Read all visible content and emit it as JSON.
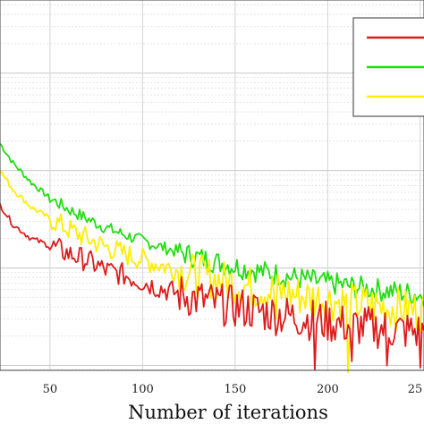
{
  "chart_data": {
    "type": "line",
    "title": "",
    "xlabel": "Number of iterations",
    "ylabel": "",
    "x_ticks": [
      "50",
      "100",
      "150",
      "200",
      "25"
    ],
    "xlim": [
      23,
      252
    ],
    "ylim_log10": [
      -3.05,
      0.75
    ],
    "y_scale": "log",
    "grid": true,
    "legend": {
      "placement": "top-right",
      "labels_visible": false
    },
    "series": [
      {
        "color": "#dd1c1c",
        "x": [
          23,
          30,
          40,
          50,
          60,
          70,
          80,
          90,
          100,
          110,
          120,
          130,
          140,
          150,
          160,
          170,
          180,
          190,
          200,
          210,
          220,
          230,
          240,
          250
        ],
        "y": [
          0.045,
          0.028,
          0.02,
          0.017,
          0.014,
          0.012,
          0.0095,
          0.0085,
          0.0072,
          0.0062,
          0.0054,
          0.0048,
          0.0043,
          0.004,
          0.0037,
          0.0034,
          0.0032,
          0.003,
          0.0028,
          0.0026,
          0.0025,
          0.0024,
          0.0023,
          0.0022
        ]
      },
      {
        "color": "#22dd11",
        "x": [
          23,
          30,
          40,
          50,
          60,
          70,
          80,
          90,
          100,
          110,
          120,
          130,
          140,
          150,
          160,
          170,
          180,
          190,
          200,
          210,
          220,
          230,
          240,
          250
        ],
        "y": [
          0.19,
          0.12,
          0.075,
          0.052,
          0.04,
          0.032,
          0.026,
          0.022,
          0.019,
          0.0165,
          0.0145,
          0.0128,
          0.0115,
          0.0104,
          0.0095,
          0.0088,
          0.0081,
          0.0075,
          0.007,
          0.0066,
          0.0062,
          0.0059,
          0.0056,
          0.0053
        ]
      },
      {
        "color": "#ffee00",
        "x": [
          23,
          30,
          40,
          50,
          60,
          70,
          80,
          90,
          100,
          110,
          120,
          130,
          140,
          150,
          160,
          170,
          180,
          190,
          200,
          210,
          220,
          230,
          240,
          250
        ],
        "y": [
          0.1,
          0.064,
          0.042,
          0.032,
          0.025,
          0.02,
          0.0165,
          0.014,
          0.0122,
          0.0107,
          0.0094,
          0.0084,
          0.0076,
          0.0069,
          0.0063,
          0.0058,
          0.0054,
          0.005,
          0.0047,
          0.0044,
          0.0042,
          0.004,
          0.0038,
          0.0036
        ]
      }
    ],
    "deep_dips": [
      {
        "series": 0,
        "x": 193,
        "y": 0.0009
      },
      {
        "series": 0,
        "x": 213,
        "y": 0.0011
      },
      {
        "series": 0,
        "x": 232,
        "y": 0.001
      },
      {
        "series": 0,
        "x": 250,
        "y": 0.00095
      },
      {
        "series": 2,
        "x": 211,
        "y": 0.00085
      },
      {
        "series": 2,
        "x": 172,
        "y": 0.003
      }
    ]
  }
}
